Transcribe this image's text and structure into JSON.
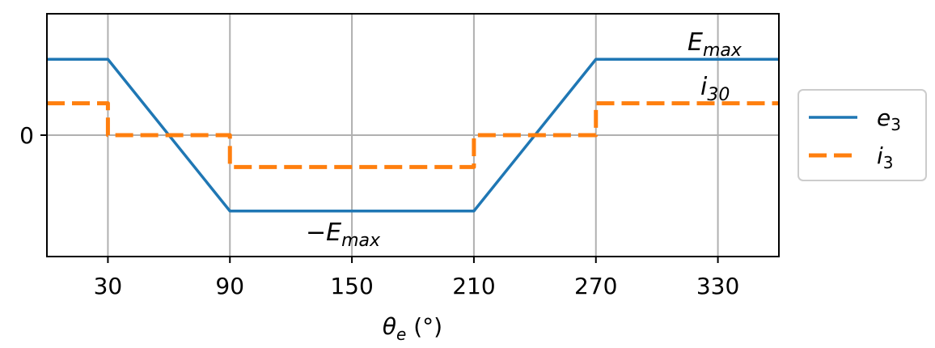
{
  "chart_data": {
    "type": "line",
    "xlabel": "θe (°)",
    "x_ticks": [
      30,
      90,
      150,
      210,
      270,
      330
    ],
    "y_ticks": [
      0
    ],
    "xlim": [
      0,
      360
    ],
    "ylim": [
      -1.6,
      1.6
    ],
    "grid": true,
    "legend_position": "right",
    "series": [
      {
        "name": "e3",
        "color": "#1f77b4",
        "style": "solid",
        "x": [
          0,
          30,
          90,
          210,
          270,
          360
        ],
        "y": [
          1,
          1,
          -1,
          -1,
          1,
          1
        ]
      },
      {
        "name": "i3",
        "color": "#ff7f0e",
        "style": "dashed",
        "x": [
          0,
          30,
          30,
          90,
          90,
          210,
          210,
          270,
          270,
          360
        ],
        "y": [
          0.42,
          0.42,
          0,
          0,
          -0.42,
          -0.42,
          0,
          0,
          0.42,
          0.42
        ]
      }
    ],
    "annotations": {
      "emax": "Emax",
      "neg_emax": "−Emax",
      "i30": "i30"
    }
  }
}
